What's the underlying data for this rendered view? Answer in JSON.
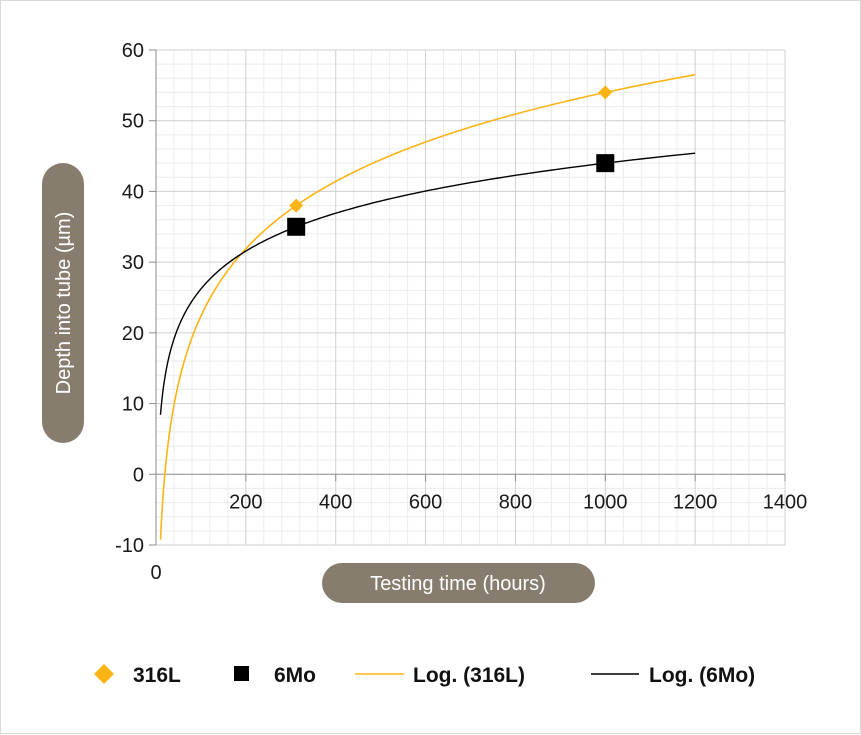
{
  "chart_data": {
    "type": "scatter",
    "title": "",
    "xlabel": "Testing time (hours)",
    "ylabel": "Depth into tube (µm)",
    "xlim": [
      0,
      1400
    ],
    "ylim": [
      -10,
      60
    ],
    "x_ticks": [
      200,
      400,
      600,
      800,
      1000,
      1200,
      1400
    ],
    "y_ticks": [
      -10,
      0,
      10,
      20,
      30,
      40,
      50,
      60
    ],
    "origin_label": "0",
    "grid": true,
    "legend_position": "bottom",
    "series": [
      {
        "name": "316L",
        "kind": "points",
        "marker": "diamond",
        "color": "#fbb415",
        "points": [
          [
            312,
            38
          ],
          [
            1000,
            54
          ]
        ]
      },
      {
        "name": "6Mo",
        "kind": "points",
        "marker": "square",
        "color": "#000000",
        "points": [
          [
            312,
            35
          ],
          [
            1000,
            44
          ]
        ]
      },
      {
        "name": "Log. (316L)",
        "kind": "trendline",
        "color": "#fbb415",
        "x_range": [
          10,
          1200
        ],
        "points": [
          [
            10,
            -3.5
          ],
          [
            200,
            31.2
          ],
          [
            312,
            38
          ],
          [
            1000,
            54
          ],
          [
            1200,
            56.6
          ]
        ]
      },
      {
        "name": "Log. (6Mo)",
        "kind": "trendline",
        "color": "#000000",
        "x_range": [
          10,
          1200
        ],
        "points": [
          [
            10,
            11.7
          ],
          [
            200,
            31.6
          ],
          [
            312,
            35
          ],
          [
            1000,
            44
          ],
          [
            1200,
            45.4
          ]
        ]
      }
    ]
  }
}
